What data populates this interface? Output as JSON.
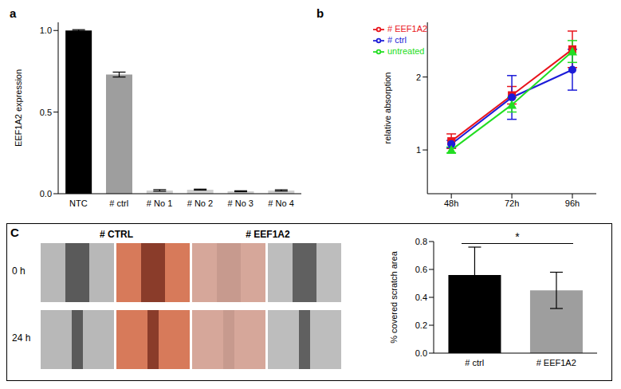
{
  "chart_data": [
    {
      "type": "bar",
      "title": "a",
      "ylabel": "EEF1A2 expression",
      "categories": [
        "NTC",
        "# ctrl",
        "# No 1",
        "# No 2",
        "# No 3",
        "# No 4"
      ],
      "values": [
        1.0,
        0.73,
        0.02,
        0.025,
        0.015,
        0.02
      ],
      "errors": [
        0.005,
        0.015,
        0.005,
        0.003,
        0.003,
        0.004
      ],
      "colors": [
        "#000000",
        "#9e9e9e",
        "#cfcfcf",
        "#cfcfcf",
        "#cfcfcf",
        "#cfcfcf"
      ],
      "ylim": [
        0,
        1.05
      ],
      "yticks": [
        {
          "value": 0,
          "label": "0.0"
        },
        {
          "value": 0.5,
          "label": "0.5"
        },
        {
          "value": 1,
          "label": "1.0"
        }
      ]
    },
    {
      "type": "line",
      "title": "b",
      "ylabel": "relative absorption",
      "categories": [
        "48h",
        "72h",
        "96h"
      ],
      "series": [
        {
          "name": "# EEF1A2",
          "color": "#e8141c",
          "marker": "square",
          "values": [
            1.12,
            1.75,
            2.38
          ],
          "errors": [
            0.1,
            0.12,
            0.25
          ]
        },
        {
          "name": "# ctrl",
          "color": "#1c1cd8",
          "marker": "circle",
          "values": [
            1.08,
            1.72,
            2.1
          ],
          "errors": [
            0.05,
            0.3,
            0.28
          ]
        },
        {
          "name": "untreated",
          "color": "#22dd22",
          "marker": "triangle",
          "values": [
            1.0,
            1.62,
            2.35
          ],
          "errors": [
            0.04,
            0.1,
            0.15
          ]
        }
      ],
      "ylim": [
        0.4,
        2.75
      ],
      "yticks": [
        1,
        2
      ],
      "legend": "upper left"
    },
    {
      "type": "bar",
      "ylabel": "% covered scratch area",
      "categories": [
        "# ctrl",
        "# EEF1A2"
      ],
      "values": [
        0.56,
        0.45
      ],
      "errors": [
        0.2,
        0.13
      ],
      "colors": [
        "#000000",
        "#9e9e9e"
      ],
      "ylim": [
        0,
        0.8
      ],
      "yticks": [
        {
          "value": 0,
          "label": "0.0"
        },
        {
          "value": 0.2,
          "label": "0.2"
        },
        {
          "value": 0.4,
          "label": "0.4"
        },
        {
          "value": 0.6,
          "label": "0.6"
        },
        {
          "value": 0.8,
          "label": "0.8"
        }
      ],
      "annotations": [
        "*"
      ]
    }
  ],
  "image_panel": {
    "panel": "C",
    "columns": [
      "# CTRL",
      "# EEF1A2"
    ],
    "rows": [
      "0 h",
      "24 h"
    ]
  }
}
